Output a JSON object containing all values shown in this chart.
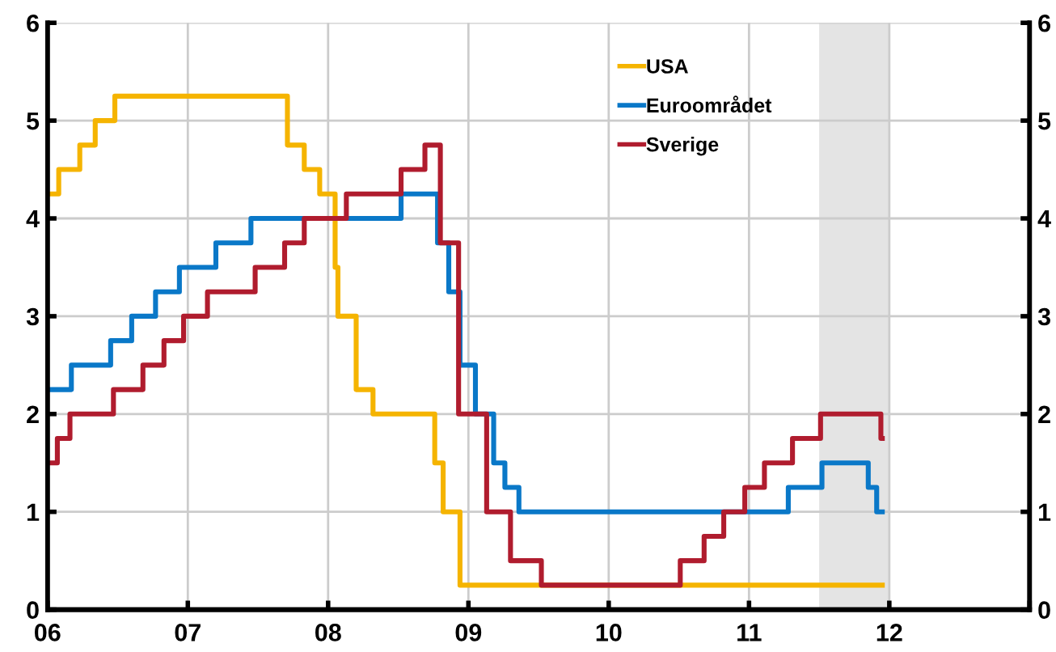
{
  "chart_data": {
    "type": "step",
    "xlim": [
      2006,
      2013
    ],
    "xticks": [
      {
        "value": 2006,
        "label": "06"
      },
      {
        "value": 2007,
        "label": "07"
      },
      {
        "value": 2008,
        "label": "08"
      },
      {
        "value": 2009,
        "label": "09"
      },
      {
        "value": 2010,
        "label": "10"
      },
      {
        "value": 2011,
        "label": "11"
      },
      {
        "value": 2012,
        "label": "12"
      },
      {
        "value": 2013,
        "label": null
      }
    ],
    "ylim": [
      0,
      6
    ],
    "yticks": [
      0,
      1,
      2,
      3,
      4,
      5,
      6
    ],
    "y2lim": [
      0,
      6
    ],
    "y2ticks": [
      0,
      1,
      2,
      3,
      4,
      5,
      6
    ],
    "grid": true,
    "legend": "top",
    "bands": [
      {
        "axis": "x",
        "from": 2011.5,
        "to": 2012.0,
        "color": "#e4e4e4"
      }
    ],
    "series": [
      {
        "name": "USA",
        "color": "#f5b400",
        "x": [
          2006.0,
          2006.08,
          2006.23,
          2006.34,
          2006.48,
          2007.71,
          2007.83,
          2007.94,
          2008.05,
          2008.07,
          2008.2,
          2008.32,
          2008.76,
          2008.82,
          2008.94,
          2011.95
        ],
        "values": [
          4.25,
          4.5,
          4.75,
          5.0,
          5.25,
          4.75,
          4.5,
          4.25,
          3.5,
          3.0,
          2.25,
          2.0,
          1.5,
          1.0,
          0.25,
          0.25
        ]
      },
      {
        "name": "Euroområdet",
        "color": "#0a78c8",
        "x": [
          2006.0,
          2006.17,
          2006.45,
          2006.6,
          2006.77,
          2006.94,
          2007.2,
          2007.45,
          2008.52,
          2008.78,
          2008.86,
          2008.94,
          2009.05,
          2009.18,
          2009.26,
          2009.36,
          2011.28,
          2011.52,
          2011.85,
          2011.91,
          2011.95
        ],
        "values": [
          2.25,
          2.5,
          2.75,
          3.0,
          3.25,
          3.5,
          3.75,
          4.0,
          4.25,
          3.75,
          3.25,
          2.5,
          2.0,
          1.5,
          1.25,
          1.0,
          1.25,
          1.5,
          1.25,
          1.0,
          1.0
        ]
      },
      {
        "name": "Sverige",
        "color": "#b01c2e",
        "x": [
          2006.0,
          2006.07,
          2006.16,
          2006.47,
          2006.68,
          2006.83,
          2006.97,
          2007.14,
          2007.48,
          2007.69,
          2007.83,
          2008.13,
          2008.52,
          2008.69,
          2008.8,
          2008.93,
          2009.13,
          2009.3,
          2009.52,
          2010.51,
          2010.68,
          2010.82,
          2010.97,
          2011.11,
          2011.31,
          2011.51,
          2011.94,
          2011.95
        ],
        "values": [
          1.5,
          1.75,
          2.0,
          2.25,
          2.5,
          2.75,
          3.0,
          3.25,
          3.5,
          3.75,
          4.0,
          4.25,
          4.5,
          4.75,
          3.75,
          2.0,
          1.0,
          0.5,
          0.25,
          0.5,
          0.75,
          1.0,
          1.25,
          1.5,
          1.75,
          2.0,
          1.75,
          1.75
        ]
      }
    ]
  }
}
